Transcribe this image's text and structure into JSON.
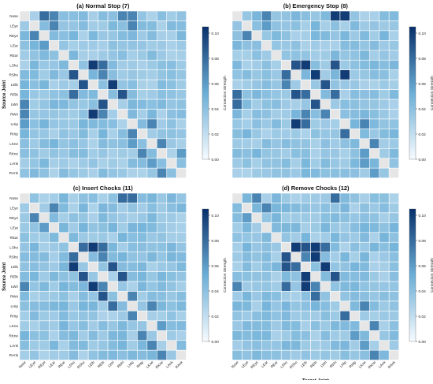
{
  "figure": {
    "colormap": {
      "low": "#f7fbff",
      "mid": "#6baed6",
      "high": "#08306b",
      "diagonal": "#e6e6e6"
    }
  },
  "chart_data": [
    {
      "type": "heatmap",
      "title": "(a) Normal Stop (7)",
      "xlabel": "",
      "ylabel": "Source Joint",
      "colorbar_label": "Connection Strength",
      "colorbar_ticks": [
        "0.10",
        "0.08",
        "0.06",
        "0.04",
        "0.02",
        "0.00"
      ],
      "x_tick_labels": [],
      "y_tick_labels": [
        "Nose",
        "LEye",
        "REye",
        "LEar",
        "REar",
        "LSho",
        "RSho",
        "LElb",
        "RElb",
        "LWri",
        "RWri",
        "LHip",
        "RHip",
        "LKne",
        "RKne",
        "LAnk",
        "RAnk"
      ],
      "vmin": 0,
      "vmax": 0.105,
      "strong_cells": [
        [
          0,
          2,
          0.08
        ],
        [
          0,
          3,
          0.07
        ],
        [
          1,
          3,
          0.07
        ],
        [
          2,
          1,
          0.07
        ],
        [
          3,
          2,
          0.06
        ],
        [
          5,
          7,
          0.1
        ],
        [
          5,
          8,
          0.08
        ],
        [
          6,
          5,
          0.09
        ],
        [
          6,
          8,
          0.07
        ],
        [
          7,
          6,
          0.09
        ],
        [
          7,
          9,
          0.1
        ],
        [
          8,
          5,
          0.08
        ],
        [
          8,
          10,
          0.09
        ],
        [
          9,
          8,
          0.09
        ],
        [
          10,
          7,
          0.1
        ],
        [
          10,
          8,
          0.07
        ],
        [
          11,
          13,
          0.07
        ],
        [
          12,
          11,
          0.07
        ],
        [
          13,
          14,
          0.07
        ],
        [
          14,
          12,
          0.07
        ],
        [
          14,
          16,
          0.06
        ],
        [
          15,
          13,
          0.06
        ],
        [
          16,
          14,
          0.07
        ],
        [
          9,
          0,
          0.07
        ],
        [
          10,
          0,
          0.07
        ],
        [
          11,
          0,
          0.06
        ],
        [
          0,
          10,
          0.07
        ],
        [
          0,
          11,
          0.07
        ],
        [
          1,
          11,
          0.07
        ],
        [
          13,
          11,
          0.06
        ]
      ]
    },
    {
      "type": "heatmap",
      "title": "(b) Emergency Stop (8)",
      "xlabel": "",
      "ylabel": "",
      "colorbar_label": "Connection Strength",
      "colorbar_ticks": [
        "0.10",
        "0.08",
        "0.06",
        "0.04",
        "0.02",
        "0.00"
      ],
      "x_tick_labels": [],
      "y_tick_labels": [],
      "vmin": 0,
      "vmax": 0.105,
      "strong_cells": [
        [
          0,
          3,
          0.07
        ],
        [
          0,
          10,
          0.1
        ],
        [
          0,
          11,
          0.1
        ],
        [
          1,
          3,
          0.06
        ],
        [
          2,
          1,
          0.07
        ],
        [
          5,
          6,
          0.09
        ],
        [
          5,
          7,
          0.1
        ],
        [
          5,
          10,
          0.09
        ],
        [
          6,
          5,
          0.08
        ],
        [
          6,
          8,
          0.1
        ],
        [
          6,
          11,
          0.1
        ],
        [
          7,
          5,
          0.07
        ],
        [
          7,
          9,
          0.09
        ],
        [
          8,
          6,
          0.09
        ],
        [
          8,
          7,
          0.08
        ],
        [
          8,
          10,
          0.08
        ],
        [
          9,
          8,
          0.09
        ],
        [
          10,
          7,
          0.07
        ],
        [
          10,
          9,
          0.07
        ],
        [
          11,
          6,
          0.1
        ],
        [
          11,
          7,
          0.08
        ],
        [
          11,
          13,
          0.07
        ],
        [
          12,
          11,
          0.08
        ],
        [
          13,
          14,
          0.07
        ],
        [
          14,
          13,
          0.06
        ],
        [
          15,
          13,
          0.06
        ],
        [
          16,
          14,
          0.06
        ],
        [
          8,
          0,
          0.08
        ],
        [
          9,
          0,
          0.08
        ]
      ]
    },
    {
      "type": "heatmap",
      "title": "(c) Insert Chocks (11)",
      "xlabel": "",
      "ylabel": "Source Joint",
      "colorbar_label": "Connection Strength",
      "colorbar_ticks": [
        "0.10",
        "0.08",
        "0.06",
        "0.04",
        "0.02",
        "0.00"
      ],
      "x_tick_labels": [
        "Nose",
        "LEye",
        "REye",
        "LEar",
        "REar",
        "LSho",
        "RSho",
        "LElb",
        "RElb",
        "LWri",
        "RWri",
        "LHip",
        "RHip",
        "LKne",
        "RKne",
        "LAnk",
        "RAnk"
      ],
      "y_tick_labels": [
        "Nose",
        "LEye",
        "REye",
        "LEar",
        "REar",
        "LSho",
        "RSho",
        "LElb",
        "RElb",
        "LWri",
        "RWri",
        "LHip",
        "RHip",
        "LKne",
        "RKne",
        "LAnk",
        "RAnk"
      ],
      "vmin": 0,
      "vmax": 0.105,
      "strong_cells": [
        [
          0,
          10,
          0.08
        ],
        [
          0,
          11,
          0.08
        ],
        [
          1,
          3,
          0.07
        ],
        [
          2,
          1,
          0.07
        ],
        [
          3,
          2,
          0.06
        ],
        [
          5,
          6,
          0.08
        ],
        [
          5,
          7,
          0.1
        ],
        [
          5,
          8,
          0.08
        ],
        [
          6,
          5,
          0.08
        ],
        [
          6,
          8,
          0.07
        ],
        [
          7,
          5,
          0.1
        ],
        [
          7,
          9,
          0.09
        ],
        [
          8,
          6,
          0.09
        ],
        [
          8,
          10,
          0.09
        ],
        [
          9,
          7,
          0.1
        ],
        [
          9,
          8,
          0.07
        ],
        [
          10,
          8,
          0.09
        ],
        [
          10,
          11,
          0.07
        ],
        [
          11,
          9,
          0.08
        ],
        [
          11,
          13,
          0.07
        ],
        [
          12,
          11,
          0.07
        ],
        [
          13,
          14,
          0.06
        ],
        [
          14,
          12,
          0.07
        ],
        [
          15,
          13,
          0.07
        ],
        [
          16,
          14,
          0.07
        ],
        [
          9,
          0,
          0.07
        ]
      ]
    },
    {
      "type": "heatmap",
      "title": "(d) Remove Chocks (12)",
      "xlabel": "Target Joint",
      "ylabel": "",
      "colorbar_label": "Connection Strength",
      "colorbar_ticks": [
        "0.10",
        "0.08",
        "0.06",
        "0.04",
        "0.02",
        "0.00"
      ],
      "x_tick_labels": [
        "Nose",
        "LEye",
        "REye",
        "LEar",
        "REar",
        "LSho",
        "RSho",
        "LElb",
        "RElb",
        "LWri",
        "RWri",
        "LHip",
        "RHip",
        "LKne",
        "RKne",
        "LAnk",
        "RAnk"
      ],
      "y_tick_labels": [],
      "vmin": 0,
      "vmax": 0.105,
      "strong_cells": [
        [
          0,
          2,
          0.07
        ],
        [
          0,
          10,
          0.08
        ],
        [
          1,
          3,
          0.07
        ],
        [
          2,
          1,
          0.06
        ],
        [
          5,
          6,
          0.1
        ],
        [
          5,
          7,
          0.09
        ],
        [
          5,
          8,
          0.1
        ],
        [
          5,
          9,
          0.08
        ],
        [
          6,
          5,
          0.09
        ],
        [
          6,
          7,
          0.07
        ],
        [
          6,
          8,
          0.1
        ],
        [
          7,
          5,
          0.09
        ],
        [
          7,
          6,
          0.08
        ],
        [
          7,
          9,
          0.1
        ],
        [
          8,
          7,
          0.1
        ],
        [
          8,
          10,
          0.09
        ],
        [
          9,
          5,
          0.08
        ],
        [
          9,
          7,
          0.1
        ],
        [
          9,
          8,
          0.07
        ],
        [
          10,
          8,
          0.08
        ],
        [
          11,
          13,
          0.07
        ],
        [
          12,
          11,
          0.08
        ],
        [
          13,
          14,
          0.07
        ],
        [
          14,
          12,
          0.06
        ],
        [
          15,
          13,
          0.06
        ],
        [
          16,
          14,
          0.07
        ],
        [
          9,
          0,
          0.07
        ]
      ]
    }
  ]
}
